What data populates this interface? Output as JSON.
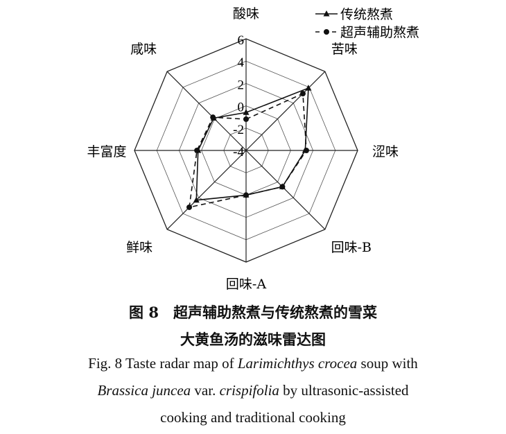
{
  "chart_data": {
    "type": "radar",
    "categories": [
      "酸味",
      "苦味",
      "涩味",
      "回味-B",
      "回味-A",
      "鲜味",
      "丰富度",
      "咸味"
    ],
    "rlim": [
      -4,
      6
    ],
    "ticks": [
      "-4",
      "-2",
      "0",
      "2",
      "4",
      "6"
    ],
    "legend_position": "top-right",
    "series": [
      {
        "name": "传统熬煮",
        "marker": "triangle",
        "line": "solid",
        "values": [
          -0.6,
          3.9,
          1.3,
          0.6,
          0.0,
          2.3,
          0.3,
          0.1
        ]
      },
      {
        "name": "超声辅助熬煮",
        "marker": "circle",
        "line": "dashed",
        "values": [
          -1.2,
          3.2,
          1.4,
          0.6,
          0.0,
          3.2,
          0.4,
          0.2
        ]
      }
    ],
    "grid": true
  },
  "caption": {
    "cn_line1": "图 8　超声辅助熬煮与传统熬煮的雪菜",
    "cn_line2": "大黄鱼汤的滋味雷达图",
    "en_line1_a": "Fig. 8 Taste radar map of ",
    "en_line1_b": "Larimichthys crocea",
    "en_line1_c": " soup with",
    "en_line2_a": "Brassica juncea",
    "en_line2_b": " var. ",
    "en_line2_c": "crispifolia",
    "en_line2_d": " by ultrasonic-assisted",
    "en_line3": "cooking and traditional cooking"
  }
}
